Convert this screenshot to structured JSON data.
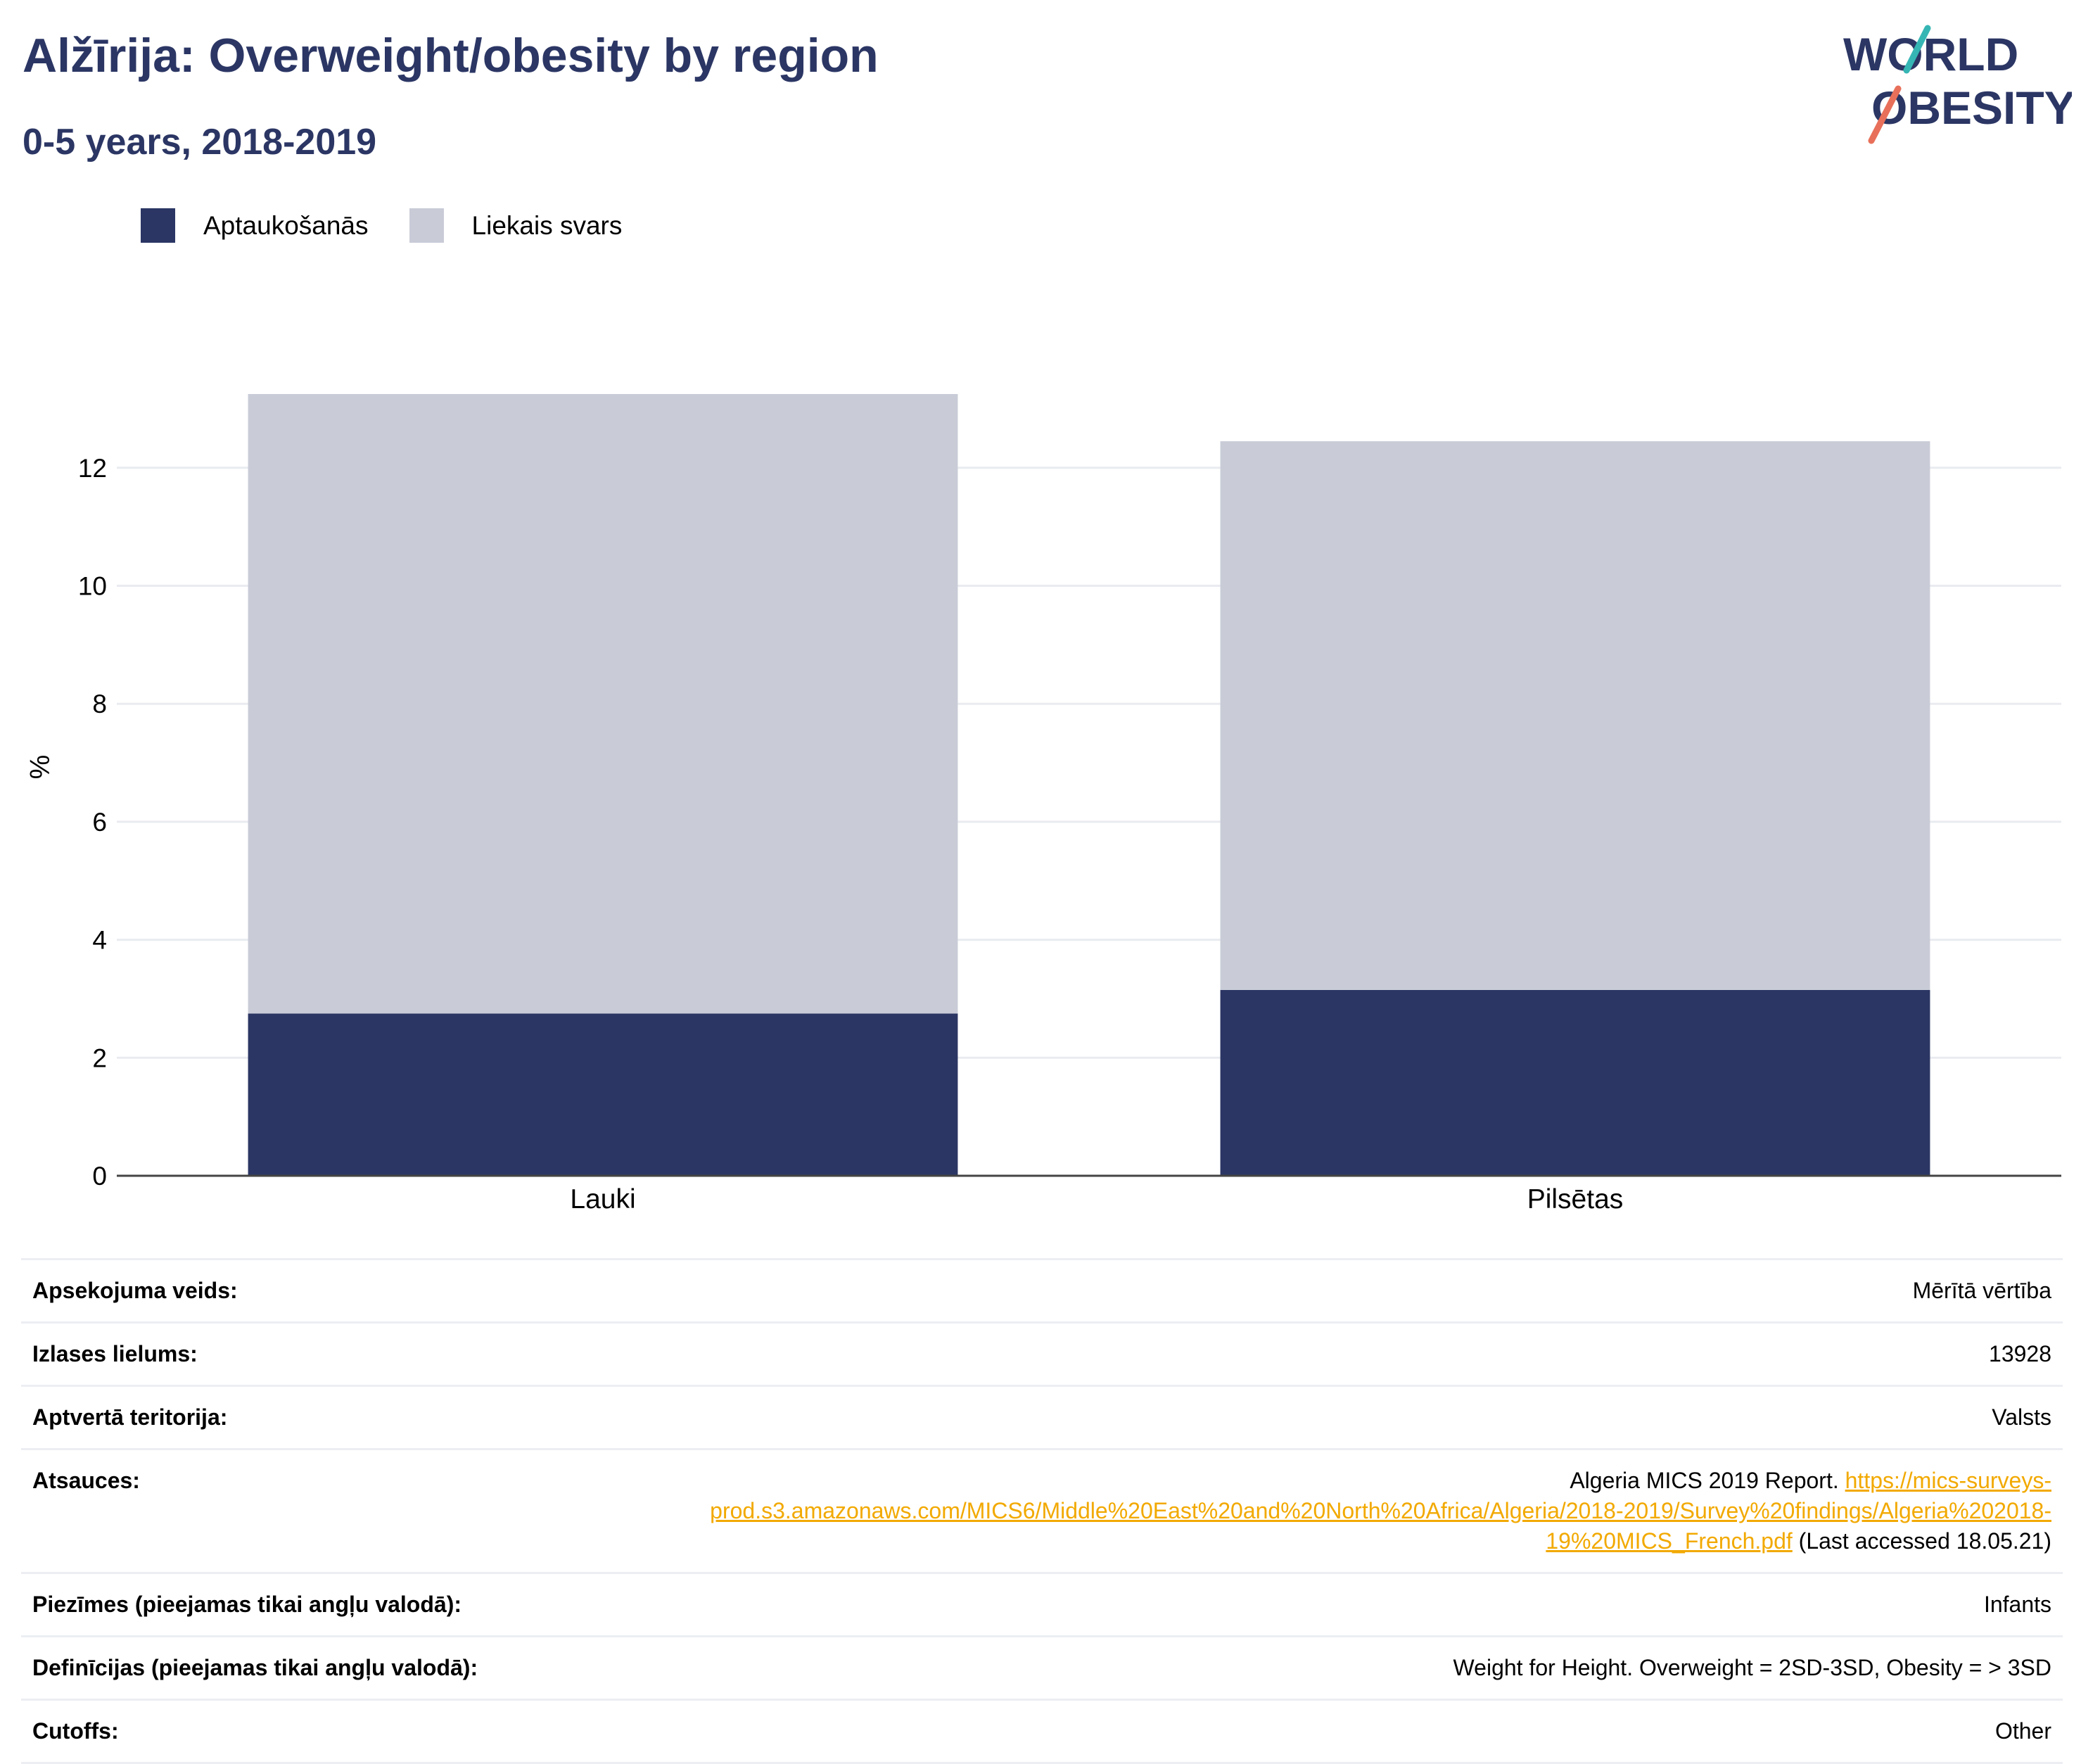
{
  "header": {
    "title": "Alžīrija: Overweight/obesity by region",
    "subtitle": "0-5 years, 2018-2019"
  },
  "logo": {
    "line1": "WORLD",
    "line2": "OBESITY",
    "colors": {
      "text": "#2b3664",
      "slash_top": "#35b6b4",
      "slash_bottom": "#e8705a"
    }
  },
  "legend": [
    {
      "label": "Aptaukošanās",
      "color": "#2b3664"
    },
    {
      "label": "Liekais svars",
      "color": "#c9ccd7"
    }
  ],
  "chart_data": {
    "type": "bar",
    "stacked": true,
    "categories": [
      "Lauki",
      "Pilsētas"
    ],
    "series": [
      {
        "name": "Aptaukošanās",
        "values": [
          2.75,
          3.15
        ],
        "color": "#2b3664"
      },
      {
        "name": "Liekais svars",
        "values": [
          10.5,
          9.3
        ],
        "color": "#c9ccd7"
      }
    ],
    "ylabel": "%",
    "ylim": [
      0,
      13.25
    ],
    "yticks": [
      0,
      2,
      4,
      6,
      8,
      10,
      12
    ],
    "grid": true,
    "legend_position": "top-left"
  },
  "meta": {
    "survey_type": {
      "label": "Apsekojuma veids:",
      "value": "Mērītā vērtība"
    },
    "sample_size": {
      "label": "Izlases lielums:",
      "value": "13928"
    },
    "coverage": {
      "label": "Aptvertā teritorija:",
      "value": "Valsts"
    },
    "references": {
      "label": "Atsauces:",
      "prefix": "Algeria MICS 2019 Report. ",
      "link": "https://mics-surveys-prod.s3.amazonaws.com/MICS6/Middle%20East%20and%20North%20Africa/Algeria/2018-2019/Survey%20findings/Algeria%202018-19%20MICS_French.pdf",
      "suffix": " (Last accessed 18.05.21)"
    },
    "notes": {
      "label": "Piezīmes (pieejamas tikai angļu valodā):",
      "value": "Infants"
    },
    "definitions": {
      "label": "Definīcijas (pieejamas tikai angļu valodā):",
      "value": "Weight for Height. Overweight = 2SD-3SD, Obesity = > 3SD"
    },
    "cutoffs": {
      "label": "Cutoffs:",
      "value": "Other"
    }
  }
}
